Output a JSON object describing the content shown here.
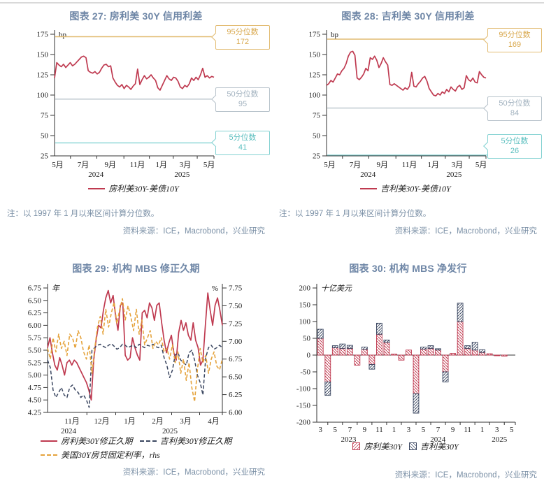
{
  "colors": {
    "title": "#6e86a6",
    "note": "#7b90a6",
    "rule": "#d9d9d9",
    "axis": "#333333",
    "tick_text": "#1c1c1c",
    "red": "#bf3a50",
    "navy": "#3a4660",
    "gold": "#e5a33c",
    "p95_line": "#e2bc72",
    "p95_text": "#d9a94f",
    "p50_line": "#b8c3cb",
    "p50_text": "#a2b2bf",
    "p05_line": "#84d2d2",
    "p05_text": "#5bbfbf"
  },
  "chart_data": [
    {
      "id": "fig27",
      "type": "line",
      "title": "图表 27: 房利美 30Y 信用利差",
      "unit": "bp",
      "note": "注：以 1997 年 1 月以来区间计算分位数。",
      "source": "资料来源：ICE，Macrobond，兴业研究",
      "ylim": [
        25,
        175
      ],
      "yticks": [
        "175",
        "150",
        "125",
        "100",
        "75",
        "50",
        "25"
      ],
      "xticks": [
        {
          "label": "5月",
          "f": 0.02
        },
        {
          "label": "7月",
          "f": 0.18
        },
        {
          "label": "9月",
          "f": 0.35
        },
        {
          "label": "11月",
          "f": 0.52
        },
        {
          "label": "1月",
          "f": 0.67
        },
        {
          "label": "3月",
          "f": 0.82
        },
        {
          "label": "5月",
          "f": 0.97
        }
      ],
      "years": [
        {
          "label": "2024",
          "f": 0.26
        },
        {
          "label": "2025",
          "f": 0.8
        }
      ],
      "percentile_lines": [
        {
          "label": "95分位数",
          "value": 172,
          "tone": "p95"
        },
        {
          "label": "50分位数",
          "value": 95,
          "tone": "p50"
        },
        {
          "label": "5分位数",
          "value": 41,
          "tone": "p05"
        }
      ],
      "series": [
        {
          "name": "房利美30Y-美债10Y",
          "color": "red",
          "dash": "solid",
          "axis": "left",
          "width": 1.7,
          "values": [
            121,
            140,
            137,
            135,
            138,
            134,
            137,
            140,
            136,
            138,
            141,
            144,
            147,
            148,
            146,
            130,
            128,
            127,
            129,
            126,
            128,
            133,
            137,
            138,
            135,
            136,
            121,
            116,
            112,
            110,
            113,
            108,
            112,
            110,
            107,
            111,
            114,
            132,
            113,
            119,
            124,
            120,
            122,
            125,
            121,
            118,
            109,
            106,
            112,
            118,
            124,
            120,
            118,
            122,
            121,
            117,
            110,
            108,
            112,
            110,
            114,
            121,
            118,
            122,
            119,
            125,
            133,
            122,
            124,
            121,
            123,
            122
          ]
        }
      ]
    },
    {
      "id": "fig28",
      "type": "line",
      "title": "图表 28: 吉利美 30Y 信用利差",
      "unit": "bp",
      "note": "注：以 1997 年 1 月以来区间计算分位数。",
      "source": "资料来源：ICE，Macrobond，兴业研究",
      "ylim": [
        25,
        175
      ],
      "yticks": [
        "175",
        "150",
        "125",
        "100",
        "75",
        "50",
        "25"
      ],
      "xticks": [
        {
          "label": "5月",
          "f": 0.02
        },
        {
          "label": "7月",
          "f": 0.18
        },
        {
          "label": "9月",
          "f": 0.35
        },
        {
          "label": "11月",
          "f": 0.52
        },
        {
          "label": "1月",
          "f": 0.67
        },
        {
          "label": "3月",
          "f": 0.82
        },
        {
          "label": "5月",
          "f": 0.97
        }
      ],
      "years": [
        {
          "label": "2024",
          "f": 0.26
        },
        {
          "label": "2025",
          "f": 0.8
        }
      ],
      "percentile_lines": [
        {
          "label": "95分位数",
          "value": 169,
          "tone": "p95"
        },
        {
          "label": "50分位数",
          "value": 84,
          "tone": "p50"
        },
        {
          "label": "5分位数",
          "value": 26,
          "tone": "p05"
        }
      ],
      "series": [
        {
          "name": "吉利美30Y-美债10Y",
          "color": "red",
          "dash": "solid",
          "axis": "left",
          "width": 1.7,
          "values": [
            112,
            114,
            118,
            116,
            121,
            126,
            125,
            130,
            133,
            139,
            148,
            153,
            154,
            149,
            121,
            119,
            122,
            126,
            133,
            130,
            146,
            144,
            148,
            143,
            134,
            139,
            146,
            141,
            137,
            113,
            112,
            114,
            112,
            110,
            108,
            106,
            109,
            107,
            111,
            128,
            111,
            110,
            114,
            117,
            121,
            123,
            117,
            108,
            104,
            100,
            99,
            102,
            100,
            104,
            102,
            107,
            104,
            110,
            107,
            105,
            110,
            112,
            107,
            109,
            124,
            119,
            117,
            121,
            116,
            115,
            129,
            125,
            122,
            121
          ]
        }
      ]
    },
    {
      "id": "fig29",
      "type": "line",
      "title": "图表 29: 机构 MBS 修正久期",
      "unit_left": "年",
      "unit_right": "%",
      "source": "资料来源：ICE，Macrobond，兴业研究",
      "ylim_left": [
        4.25,
        6.75
      ],
      "yticks_left": [
        "6.75",
        "6.50",
        "6.25",
        "6.00",
        "5.75",
        "5.50",
        "5.25",
        "5.00",
        "4.75",
        "4.50",
        "4.25"
      ],
      "ylim_right": [
        6.0,
        7.75
      ],
      "yticks_right": [
        "7.75",
        "7.50",
        "7.25",
        "7.00",
        "6.75",
        "6.50",
        "6.25",
        "6.00"
      ],
      "xticks": [
        {
          "label": "11月",
          "f": 0.14
        },
        {
          "label": "12月",
          "f": 0.31
        },
        {
          "label": "1月",
          "f": 0.47
        },
        {
          "label": "2月",
          "f": 0.63
        },
        {
          "label": "3月",
          "f": 0.79
        },
        {
          "label": "4月",
          "f": 0.95
        }
      ],
      "years": [
        {
          "label": "2024",
          "f": 0.12
        },
        {
          "label": "2025",
          "f": 0.7
        }
      ],
      "series": [
        {
          "name": "房利美30Y修正久期",
          "color": "red",
          "dash": "solid",
          "axis": "left",
          "width": 1.7,
          "values": [
            5.55,
            5.75,
            5.45,
            5.2,
            5.1,
            5.35,
            5.2,
            5.0,
            5.25,
            5.3,
            5.2,
            5.3,
            5.25,
            5.15,
            5.05,
            4.95,
            4.85,
            4.7,
            4.5,
            5.3,
            5.7,
            6.0,
            5.95,
            6.3,
            6.55,
            6.7,
            6.45,
            6.6,
            6.2,
            5.9,
            6.4,
            6.45,
            5.4,
            5.3,
            5.35,
            5.75,
            5.55,
            5.4,
            5.3,
            6.25,
            6.3,
            6.15,
            6.45,
            6.35,
            6.1,
            6.4,
            6.45,
            6.05,
            5.7,
            5.45,
            5.65,
            5.8,
            5.45,
            5.3,
            5.85,
            6.1,
            5.9,
            6.05,
            5.8,
            5.7,
            6.05,
            5.7,
            5.55,
            5.2,
            5.3,
            6.0,
            6.65,
            6.3,
            6.0,
            6.4,
            6.55,
            6.3,
            6.0
          ]
        },
        {
          "name": "吉利美30Y修正久期",
          "color": "navy",
          "dash": "dash",
          "axis": "left",
          "width": 1.5,
          "values": [
            5.3,
            5.15,
            4.7,
            4.55,
            4.65,
            4.75,
            4.6,
            4.55,
            4.75,
            4.8,
            4.7,
            4.65,
            4.55,
            4.6,
            4.5,
            4.35,
            5.5,
            5.55,
            5.6,
            5.62,
            5.58,
            5.55,
            5.6,
            5.63,
            5.58,
            5.52,
            5.55,
            5.62,
            5.6,
            5.55,
            5.58,
            5.6,
            5.55,
            5.62,
            5.58,
            5.55,
            5.6,
            5.58,
            5.62,
            5.57,
            5.55,
            5.6,
            5.35,
            5.2,
            4.95,
            5.1,
            5.4,
            5.45,
            5.3,
            5.25,
            5.2,
            5.45,
            5.5,
            5.3,
            5.0,
            4.85,
            4.6,
            5.35,
            5.55,
            5.6,
            5.52,
            5.55,
            5.6,
            5.55
          ]
        },
        {
          "name": "美国30Y房贷固定利率，rhs",
          "color": "gold",
          "dash": "dash",
          "axis": "right",
          "width": 1.6,
          "values": [
            6.9,
            6.75,
            7.05,
            6.85,
            7.1,
            6.9,
            7.0,
            6.8,
            7.1,
            7.05,
            6.9,
            7.15,
            7.05,
            6.85,
            6.75,
            6.95,
            6.55,
            6.9,
            7.2,
            7.35,
            7.1,
            7.45,
            7.2,
            7.4,
            7.55,
            7.25,
            7.45,
            7.6,
            7.3,
            7.5,
            7.35,
            7.15,
            7.45,
            7.1,
            7.3,
            6.95,
            7.05,
            7.15,
            6.9,
            7.0,
            6.95,
            7.05,
            6.85,
            6.9,
            6.75,
            6.95,
            6.7,
            6.85,
            6.55,
            6.75,
            6.45,
            6.7,
            6.35,
            6.15,
            6.6,
            6.9,
            6.7,
            6.8,
            6.55,
            6.75,
            6.85,
            6.65,
            6.6,
            6.75
          ]
        }
      ]
    },
    {
      "id": "fig30",
      "type": "bar",
      "title": "图表 30: 机构 MBS 净发行",
      "unit": "十亿美元",
      "source": "资料来源：ICE，Macrobond，兴业研究",
      "ylim": [
        -200,
        200
      ],
      "yticks": [
        "200",
        "150",
        "100",
        "50",
        "0",
        "-50",
        "-100",
        "-150",
        "-200"
      ],
      "categories": [
        "2023-03",
        "2023-04",
        "2023-05",
        "2023-06",
        "2023-07",
        "2023-08",
        "2023-09",
        "2023-10",
        "2023-11",
        "2023-12",
        "2024-01",
        "2024-02",
        "2024-03",
        "2024-04",
        "2024-05",
        "2024-06",
        "2024-07",
        "2024-08",
        "2024-09",
        "2024-10",
        "2024-11",
        "2024-12",
        "2025-01",
        "2025-02",
        "2025-03",
        "2025-04"
      ],
      "xticks": [
        {
          "label": "3",
          "m": 0
        },
        {
          "label": "5",
          "m": 2
        },
        {
          "label": "7",
          "m": 4
        },
        {
          "label": "9",
          "m": 6
        },
        {
          "label": "11",
          "m": 8
        },
        {
          "label": "1",
          "m": 10
        },
        {
          "label": "3",
          "m": 12
        },
        {
          "label": "5",
          "m": 14
        },
        {
          "label": "7",
          "m": 16
        },
        {
          "label": "9",
          "m": 18
        },
        {
          "label": "11",
          "m": 20
        },
        {
          "label": "1",
          "m": 22
        },
        {
          "label": "3",
          "m": 24
        },
        {
          "label": "5",
          "m": 26
        }
      ],
      "years": [
        {
          "label": "2023",
          "f": 0.16
        },
        {
          "label": "2024",
          "f": 0.61
        },
        {
          "label": "2025",
          "f": 0.92
        }
      ],
      "series": [
        {
          "name": "房利美30Y",
          "color": "red",
          "swatch": "square",
          "hatch": "back",
          "values": [
            50,
            -80,
            22,
            20,
            20,
            -30,
            17,
            -28,
            62,
            38,
            3,
            -15,
            15,
            -115,
            18,
            20,
            15,
            -50,
            5,
            100,
            20,
            15,
            8,
            4,
            -2,
            -3
          ]
        },
        {
          "name": "吉利美30Y",
          "color": "navy",
          "swatch": "square",
          "hatch": "fwd",
          "values": [
            27,
            -40,
            6,
            13,
            9,
            0,
            7,
            -14,
            33,
            7,
            0,
            0,
            0,
            -58,
            6,
            8,
            4,
            -30,
            0,
            55,
            8,
            23,
            8,
            0,
            0,
            0
          ]
        }
      ]
    }
  ]
}
